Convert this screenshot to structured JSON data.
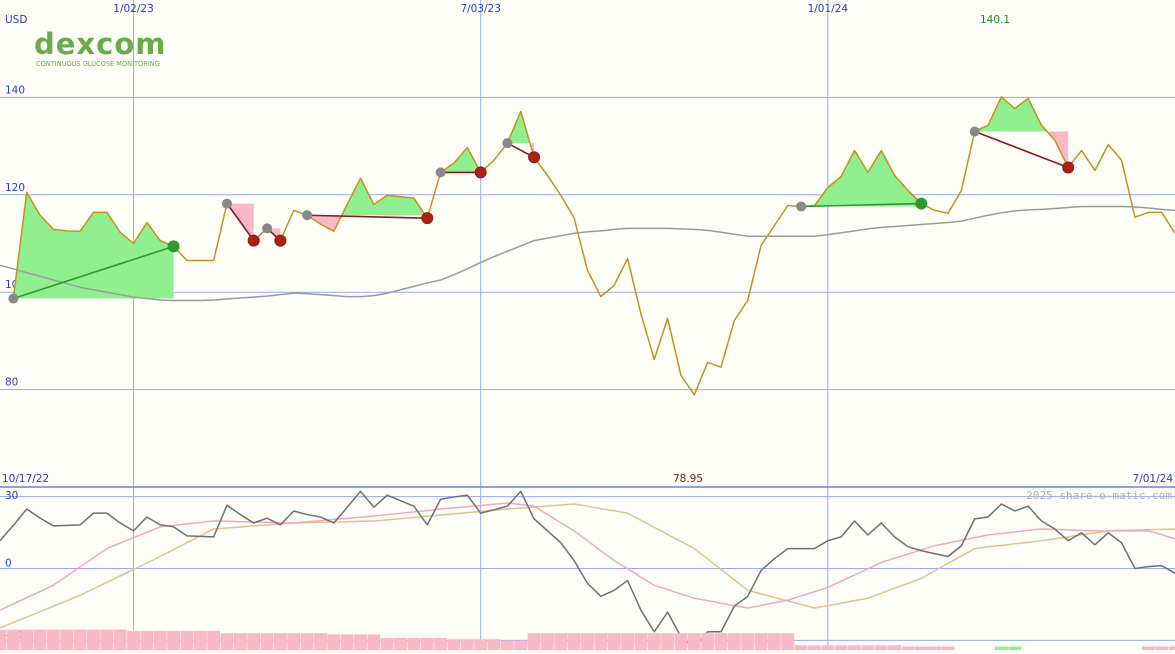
{
  "chart_data": [
    {
      "type": "line",
      "y_label": "USD",
      "logo": {
        "name": "dexcom",
        "tagline": "CONTINUOUS GLUCOSE MONITORING"
      },
      "categories": [
        null,
        null,
        null,
        null,
        null,
        null,
        null,
        null,
        null,
        null,
        "1/02/23",
        null,
        null,
        null,
        null,
        null,
        null,
        null,
        null,
        null,
        null,
        null,
        null,
        null,
        null,
        null,
        null,
        null,
        null,
        null,
        null,
        null,
        null,
        null,
        null,
        null,
        "7/03/23",
        null,
        null,
        null,
        null,
        null,
        null,
        null,
        null,
        null,
        null,
        null,
        null,
        null,
        null,
        null,
        null,
        null,
        null,
        null,
        null,
        null,
        null,
        null,
        null,
        null,
        "1/01/24",
        null,
        null,
        null,
        null,
        null,
        null,
        null,
        null,
        null,
        null,
        null,
        null,
        null,
        null,
        null,
        null,
        null,
        null,
        null,
        null,
        null,
        null,
        null,
        null,
        null,
        null
      ],
      "range_labels": [
        "10/17/22",
        "7/01/24"
      ],
      "high_label": 140.1,
      "low_label": 78.95,
      "ylim": [
        60,
        160
      ],
      "yticks": [
        80,
        100,
        120,
        140
      ],
      "grid": true,
      "series": [
        {
          "color": "#c8901a",
          "values": [
            null,
            98.7,
            120.5,
            115.8,
            112.9,
            112.6,
            112.5,
            116.4,
            116.4,
            112.3,
            110,
            114.3,
            110.6,
            109.4,
            106.5,
            106.5,
            106.5,
            118.2,
            114.5,
            110.6,
            113.1,
            110.6,
            116.8,
            115.8,
            114,
            112.5,
            118,
            123.4,
            118,
            119.9,
            119.6,
            119.3,
            115.2,
            124.6,
            126.5,
            129.7,
            124.6,
            127.1,
            130.6,
            137.1,
            127.7,
            124,
            119.9,
            115.2,
            104.5,
            99.1,
            101.4,
            106.9,
            95.6,
            86.2,
            94.6,
            82.9,
            78.95,
            85.6,
            84.6,
            94.2,
            98.3,
            109.6,
            113.7,
            117.8,
            117.6,
            117.8,
            121.5,
            123.8,
            129.1,
            124.6,
            129.1,
            124,
            120.9,
            118.2,
            116.8,
            116.2,
            120.9,
            133,
            134.3,
            140.1,
            137.7,
            139.8,
            134.3,
            131.2,
            125.6,
            129.1,
            125,
            130.3,
            127.1,
            115.4,
            116.4,
            116.4,
            112.1
          ]
        },
        {
          "color": "#9a9a9a",
          "values": [
            105.5,
            104.8,
            104,
            103.3,
            102.5,
            101.8,
            101,
            100.5,
            100,
            99.5,
            99,
            98.7,
            98.4,
            98.3,
            98.3,
            98.3,
            98.4,
            98.6,
            98.8,
            99,
            99.2,
            99.5,
            99.8,
            99.7,
            99.5,
            99.3,
            99.1,
            99.1,
            99.3,
            99.8,
            100.5,
            101.2,
            101.9,
            102.5,
            103.6,
            104.8,
            106.1,
            107.3,
            108.4,
            109.5,
            110.6,
            111.1,
            111.6,
            112.1,
            112.4,
            112.6,
            112.9,
            113.1,
            113.1,
            113.1,
            113.1,
            113,
            112.9,
            112.7,
            112.3,
            111.9,
            111.5,
            111.5,
            111.5,
            111.5,
            111.5,
            111.5,
            111.8,
            112.2,
            112.6,
            113,
            113.3,
            113.5,
            113.7,
            113.9,
            114.1,
            114.3,
            114.6,
            115.2,
            115.8,
            116.3,
            116.7,
            116.9,
            117,
            117.2,
            117.4,
            117.6,
            117.6,
            117.6,
            117.6,
            117.5,
            117.3,
            117,
            116.8
          ]
        }
      ],
      "signals": [
        {
          "from": 1,
          "to": 13,
          "color": "#2e9a2e"
        },
        {
          "from": 17,
          "to": 19,
          "color": "#8b1a1a"
        },
        {
          "from": 20,
          "to": 21,
          "color": "#8b1a1a"
        },
        {
          "from": 23,
          "to": 32,
          "color": "#8b1a1a"
        },
        {
          "from": 33,
          "to": 36,
          "color": "#8b1a1a"
        },
        {
          "from": 38,
          "to": 40,
          "color": "#8b1a1a"
        },
        {
          "from": 60,
          "to": 69,
          "color": "#2e9a2e"
        },
        {
          "from": 73,
          "to": 80,
          "color": "#8b1a1a"
        }
      ],
      "gain_fill": "#90f090",
      "loss_fill": "#f8b8c8"
    },
    {
      "type": "line",
      "watermark": "2025 share-o-matic.com",
      "ylim": [
        -34,
        34
      ],
      "yticks": [
        -30,
        0,
        30
      ],
      "grid": true,
      "series": [
        {
          "color": "#e0c090",
          "values": [
            -24.8,
            -22.5,
            -20.3,
            -18,
            -15.7,
            -13.5,
            -11.2,
            -8.5,
            -5.8,
            -3.1,
            -0.4,
            2.3,
            5,
            7.9,
            10.8,
            13.6,
            16.5,
            16.9,
            17.3,
            17.8,
            18.2,
            18.6,
            19,
            19.1,
            19.3,
            19.4,
            19.5,
            19.7,
            19.8,
            20.3,
            20.8,
            21.3,
            21.8,
            22.3,
            22.8,
            23.3,
            23.8,
            24.3,
            24.8,
            25.2,
            25.6,
            26.1,
            26.5,
            26.9,
            26,
            25,
            24.1,
            23.1,
            20.1,
            17.2,
            14.2,
            11.3,
            8.3,
            4,
            -0.4,
            -4.8,
            -9.1,
            -10.6,
            -12.1,
            -13.5,
            -15,
            -16.5,
            -15.5,
            -14.5,
            -13.4,
            -12.4,
            -10.3,
            -8.2,
            -6.2,
            -4.1,
            -1,
            2.1,
            5.2,
            8.3,
            9,
            9.6,
            10.3,
            10.9,
            11.6,
            12.4,
            13.2,
            14.1,
            14.9,
            15.7,
            15.9,
            16,
            16.2,
            16.3,
            16.5
          ]
        },
        {
          "color": "#f0a8c0",
          "values": [
            -17.4,
            -14.8,
            -12.2,
            -9.6,
            -7,
            -3.2,
            0.7,
            4.5,
            8.3,
            10.6,
            12.9,
            15.1,
            17.4,
            18,
            18.6,
            19.2,
            19.8,
            19.7,
            19.5,
            19.4,
            19.3,
            19.1,
            19,
            19.5,
            20,
            20.5,
            20.9,
            21.4,
            21.9,
            22.5,
            23,
            23.6,
            24.2,
            24.8,
            25.3,
            25.8,
            26.3,
            26.8,
            27.3,
            26.7,
            26,
            22.6,
            19.1,
            15.7,
            11.6,
            7.4,
            3.3,
            -0.1,
            -3.6,
            -7,
            -8.8,
            -10.6,
            -12.4,
            -13.4,
            -14.5,
            -15.5,
            -16.5,
            -15.4,
            -14.3,
            -13.2,
            -11.4,
            -9.7,
            -7.9,
            -5.3,
            -2.7,
            -0.1,
            2.5,
            4.3,
            6,
            7.8,
            9.5,
            10.6,
            11.8,
            12.9,
            14,
            14.6,
            15.3,
            15.9,
            16.5,
            16.3,
            16.1,
            15.9,
            15.7,
            15.7,
            15.7,
            15.7,
            15.7,
            14.1,
            12.4
          ]
        },
        {
          "color": "#707070",
          "values": [
            11.6,
            18,
            24.8,
            21,
            17.8,
            18,
            18.2,
            23.1,
            23.1,
            19,
            15.7,
            21.5,
            18.2,
            17.4,
            13.6,
            13.4,
            13.2,
            26.4,
            22.5,
            19,
            21,
            18.2,
            24,
            22.5,
            21.5,
            19,
            25.5,
            32.2,
            25.6,
            30.6,
            28.3,
            26,
            18.2,
            28.9,
            29.8,
            30.6,
            23.1,
            24.5,
            26,
            32.2,
            20.7,
            15.7,
            10.7,
            3.3,
            -6.2,
            -11.6,
            -9.1,
            -5,
            -17.4,
            -26.4,
            -18.2,
            -28.5,
            -33,
            -26.4,
            -26.4,
            -15.7,
            -11.6,
            -0.8,
            4.1,
            8.3,
            8.3,
            8.3,
            11.6,
            13.2,
            19.8,
            14,
            19,
            13.2,
            9.1,
            7.4,
            6.2,
            5,
            9.5,
            20.7,
            21.5,
            26.9,
            24,
            26,
            19.8,
            16.5,
            11.6,
            14.9,
            9.9,
            14.9,
            10.7,
            0,
            0.8,
            1.2,
            -2
          ]
        },
        {
          "type": "bar",
          "color": "#f8b8c8",
          "values": [
            -25.5,
            -25.5,
            -25.5,
            -25.5,
            -25.5,
            -25.5,
            -25.5,
            -25.5,
            -25.5,
            -25.5,
            -26,
            -26,
            -26,
            -26,
            -26,
            -26,
            -26,
            -27,
            -27,
            -27,
            -27,
            -27,
            -27,
            -27,
            -27,
            -27.5,
            -27.5,
            -27.5,
            -27.5,
            -29,
            -29,
            -29,
            -29,
            -29,
            -29.5,
            -29.5,
            -29.5,
            -29.5,
            -30,
            -30,
            -27,
            -27,
            -27,
            -27,
            -27,
            -27,
            -27,
            -27,
            -27,
            -27,
            -27,
            -27,
            -27,
            -27,
            -27,
            -27,
            -27,
            -27,
            -27,
            -27,
            -32,
            -32,
            -32,
            -32,
            -32,
            -32,
            -32,
            -32,
            -32.5,
            -32.5,
            -32.5,
            -32.5,
            null,
            null,
            null,
            null,
            null,
            null,
            null,
            null,
            null,
            null,
            null,
            null,
            null,
            null,
            -32.5,
            -32.5,
            -32.5
          ]
        },
        {
          "type": "bar",
          "color": "#90f090",
          "values": [
            null,
            null,
            null,
            null,
            null,
            null,
            null,
            null,
            null,
            null,
            null,
            null,
            null,
            null,
            null,
            null,
            null,
            null,
            null,
            null,
            null,
            null,
            null,
            null,
            null,
            null,
            null,
            null,
            null,
            null,
            null,
            null,
            null,
            null,
            null,
            null,
            null,
            null,
            null,
            null,
            null,
            null,
            null,
            null,
            null,
            null,
            null,
            null,
            null,
            null,
            null,
            null,
            null,
            null,
            null,
            null,
            null,
            null,
            null,
            null,
            null,
            null,
            null,
            null,
            null,
            null,
            null,
            null,
            null,
            null,
            null,
            null,
            null,
            null,
            null,
            -32.5,
            -32.5,
            null,
            null,
            null,
            null,
            null,
            null,
            null,
            null,
            null,
            null,
            null,
            null
          ]
        }
      ]
    }
  ]
}
